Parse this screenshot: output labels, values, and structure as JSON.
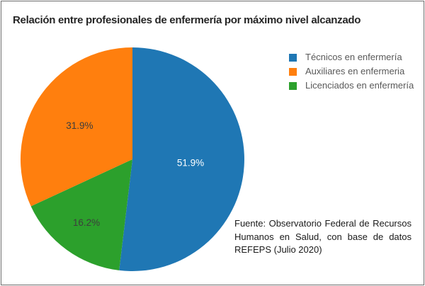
{
  "chart_data": {
    "type": "pie",
    "title": "Relación entre profesionales de enfermería por máximo nivel alcanzado",
    "direction": "clockwise",
    "start_angle": "12-oclock",
    "categories": [
      "Técnicos en enfermería",
      "Auxiliares en enfermeria",
      "Licenciados en enfermería"
    ],
    "values": [
      51.9,
      31.9,
      16.2
    ],
    "slices": [
      {
        "label": "Técnicos en enfermería",
        "value": 51.9,
        "display": "51.9%",
        "color": "#1f77b4",
        "text_color": "#ffffff",
        "label_r": 0.52
      },
      {
        "label": "Licenciados en enfermería",
        "value": 16.2,
        "display": "16.2%",
        "color": "#2ca02c",
        "text_color": "#3d3d3d",
        "label_r": 0.7
      },
      {
        "label": "Auxiliares en enfermeria",
        "value": 31.9,
        "display": "31.9%",
        "color": "#ff7f0e",
        "text_color": "#3d3d3d",
        "label_r": 0.56
      }
    ],
    "legend": {
      "position": "top-right",
      "items": [
        {
          "label": "Técnicos en enfermería",
          "color": "#1f77b4"
        },
        {
          "label": "Auxiliares en enfermeria",
          "color": "#ff7f0e"
        },
        {
          "label": "Licenciados en enfermería",
          "color": "#2ca02c"
        }
      ]
    },
    "source_note": "Fuente: Observatorio Federal de Recursos Humanos en Salud, con base de datos REFEPS (Julio 2020)"
  }
}
